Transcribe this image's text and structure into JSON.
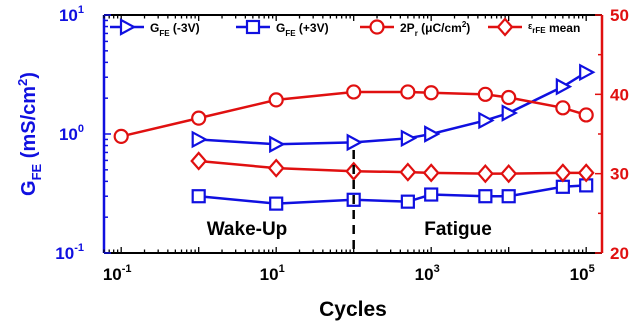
{
  "chart_data": {
    "type": "line",
    "x_axis": {
      "label": "Cycles",
      "scale": "log",
      "range": [
        0.06,
        160000
      ],
      "ticks": [
        {
          "value": 0.1,
          "base": "10",
          "exp": "-1"
        },
        {
          "value": 10,
          "base": "10",
          "exp": "1"
        },
        {
          "value": 1000,
          "base": "10",
          "exp": "3"
        },
        {
          "value": 100000,
          "base": "10",
          "exp": "5"
        }
      ]
    },
    "y_left": {
      "label_main": "G",
      "label_sub": "FE",
      "label_units": " (mS/cm",
      "label_units_sup": "2",
      "label_units_close": ")",
      "scale": "log",
      "range": [
        0.1,
        10
      ],
      "color": "#1010e0",
      "ticks": [
        {
          "value": 0.1,
          "base": "10",
          "exp": "-1"
        },
        {
          "value": 1,
          "base": "10",
          "exp": "0"
        },
        {
          "value": 10,
          "base": "10",
          "exp": "1"
        }
      ]
    },
    "y_right": {
      "scale": "linear",
      "range": [
        20,
        50
      ],
      "color": "#e01010",
      "ticks": [
        "20",
        "30",
        "40",
        "50"
      ]
    },
    "boundary_x": 100,
    "annotations": {
      "left": "Wake-Up",
      "right": "Fatigue"
    },
    "legend_position": "top",
    "series": [
      {
        "name_main": "G",
        "name_sub": "FE",
        "name_rest": " (-3V)",
        "axis": "left",
        "color": "#1010e0",
        "marker": "triangle-right",
        "x": [
          1,
          10,
          100,
          500,
          1000,
          5000,
          10000,
          50000,
          100000
        ],
        "y": [
          0.9,
          0.82,
          0.85,
          0.92,
          1.0,
          1.3,
          1.5,
          2.5,
          3.3
        ]
      },
      {
        "name_main": "G",
        "name_sub": "FE",
        "name_rest": " (+3V)",
        "axis": "left",
        "color": "#1010e0",
        "marker": "square",
        "x": [
          1,
          10,
          100,
          500,
          1000,
          5000,
          10000,
          50000,
          100000
        ],
        "y": [
          0.3,
          0.26,
          0.28,
          0.27,
          0.31,
          0.3,
          0.3,
          0.36,
          0.37
        ]
      },
      {
        "name_main": "2P",
        "name_sub": "r",
        "name_rest": " (μC/cm",
        "name_sup": "2",
        "name_tail": ")",
        "axis": "right",
        "color": "#e01010",
        "marker": "circle",
        "x": [
          0.1,
          1,
          10,
          100,
          500,
          1000,
          5000,
          10000,
          50000,
          100000
        ],
        "y": [
          34.7,
          37.0,
          39.3,
          40.3,
          40.3,
          40.2,
          40.0,
          39.6,
          38.3,
          37.4
        ]
      },
      {
        "name_main": "ε",
        "name_sub": "rFE",
        "name_rest": " mean",
        "name_small_lead": true,
        "axis": "right",
        "color": "#e01010",
        "marker": "diamond",
        "x": [
          1,
          10,
          100,
          500,
          1000,
          5000,
          10000,
          50000,
          100000
        ],
        "y": [
          31.6,
          30.7,
          30.3,
          30.2,
          30.1,
          30.0,
          30.0,
          30.1,
          30.1
        ]
      }
    ]
  }
}
